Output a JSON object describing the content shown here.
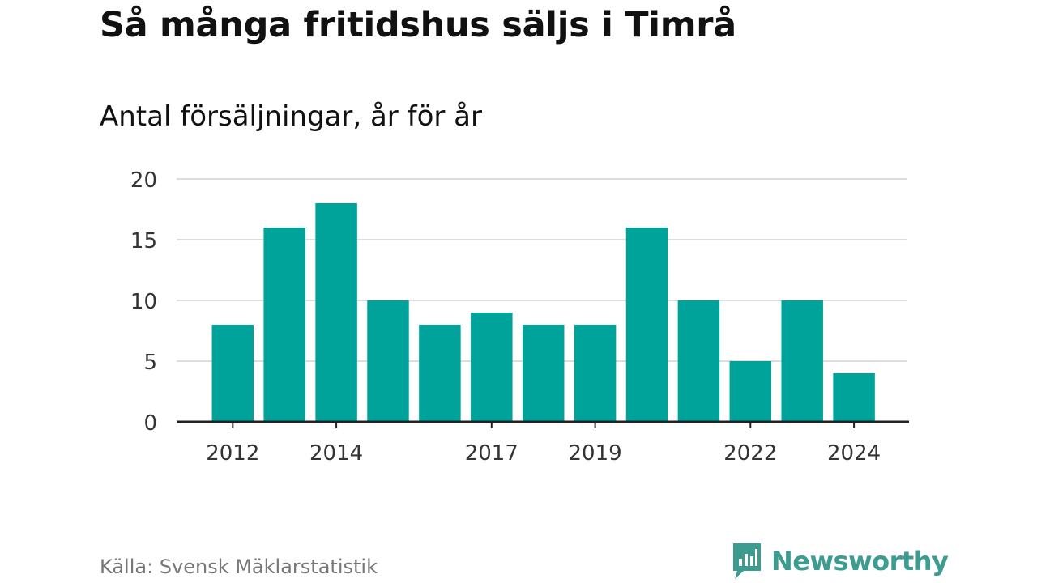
{
  "header": {
    "title": "Så många fritidshus säljs i Timrå",
    "subtitle": "Antal försäljningar, år för år"
  },
  "footer": {
    "source": "Källa: Svensk Mäklarstatistik",
    "brand": "Newsworthy",
    "brand_icon": "newsworthy-logo-icon"
  },
  "colors": {
    "bar": "#00a39a",
    "grid": "#dddddd",
    "axis": "#222222",
    "brand": "#3b9c8f"
  },
  "chart_data": {
    "type": "bar",
    "categories": [
      "2012",
      "2013",
      "2014",
      "2015",
      "2016",
      "2017",
      "2018",
      "2019",
      "2020",
      "2021",
      "2022",
      "2023",
      "2024"
    ],
    "values": [
      8,
      16,
      18,
      10,
      8,
      9,
      8,
      8,
      16,
      10,
      5,
      10,
      4
    ],
    "x_tick_labels": [
      "2012",
      "2014",
      "2017",
      "2019",
      "2022",
      "2024"
    ],
    "y_ticks": [
      0,
      5,
      10,
      15,
      20
    ],
    "ylim": [
      0,
      20
    ],
    "xlabel": "",
    "ylabel": "",
    "grid": true,
    "legend": "none"
  }
}
